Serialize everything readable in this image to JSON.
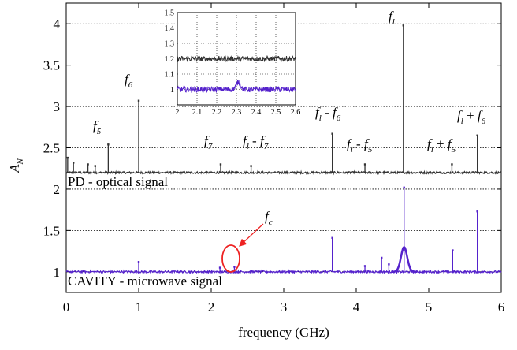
{
  "chart_data": [
    {
      "type": "line",
      "xlabel": "frequency (GHz)",
      "ylabel": "A_N",
      "ylabel_main": "A",
      "ylabel_sub": "N",
      "xlim": [
        0,
        6
      ],
      "ylim": [
        0.75,
        4.25
      ],
      "xticks": [
        "0",
        "1",
        "2",
        "3",
        "4",
        "5",
        "6"
      ],
      "yticks": [
        "1",
        "1.5",
        "2",
        "2.5",
        "3",
        "3.5",
        "4"
      ],
      "grid": "horizontal dotted",
      "series": [
        {
          "name": "PD - optical signal",
          "color": "#333333",
          "baseline": 2.2,
          "peaks": [
            {
              "x": 0.02,
              "y": 2.38
            },
            {
              "x": 0.1,
              "y": 2.32
            },
            {
              "x": 0.3,
              "y": 2.3
            },
            {
              "x": 0.4,
              "y": 2.28
            },
            {
              "x": 0.58,
              "y": 2.54
            },
            {
              "x": 1.0,
              "y": 3.07
            },
            {
              "x": 2.13,
              "y": 2.3
            },
            {
              "x": 2.55,
              "y": 2.28
            },
            {
              "x": 3.67,
              "y": 2.67
            },
            {
              "x": 4.12,
              "y": 2.3
            },
            {
              "x": 4.65,
              "y": 3.98
            },
            {
              "x": 5.32,
              "y": 2.3
            },
            {
              "x": 5.67,
              "y": 2.65
            }
          ]
        },
        {
          "name": "CAVITY - microwave signal",
          "color": "#5522cc",
          "baseline": 1.0,
          "peaks": [
            {
              "x": 1.0,
              "y": 1.12
            },
            {
              "x": 2.12,
              "y": 1.05
            },
            {
              "x": 2.32,
              "y": 1.06
            },
            {
              "x": 3.67,
              "y": 1.41
            },
            {
              "x": 4.12,
              "y": 1.07
            },
            {
              "x": 4.35,
              "y": 1.17
            },
            {
              "x": 4.45,
              "y": 1.09
            },
            {
              "x": 4.66,
              "y": 2.02
            },
            {
              "x": 5.33,
              "y": 1.26
            },
            {
              "x": 5.67,
              "y": 1.73
            }
          ]
        }
      ],
      "annotations": {
        "f5": {
          "main": "f",
          "sub": "5"
        },
        "f6": {
          "main": "f",
          "sub": "6"
        },
        "f7": {
          "main": "f",
          "sub": "7"
        },
        "fl_minus_f7": {
          "a": "f",
          "a_sub": "l",
          "op": " - ",
          "b": "f",
          "b_sub": "7"
        },
        "fl_minus_f6": {
          "a": "f",
          "a_sub": "l",
          "op": " - ",
          "b": "f",
          "b_sub": "6"
        },
        "fl_minus_f5": {
          "a": "f",
          "a_sub": "l",
          "op": " - ",
          "b": "f",
          "b_sub": "5"
        },
        "fl": {
          "main": "f",
          "sub": "l"
        },
        "fl_plus_f5": {
          "a": "f",
          "a_sub": "l",
          "op": " + ",
          "b": "f",
          "b_sub": "5"
        },
        "fl_plus_f6": {
          "a": "f",
          "a_sub": "l",
          "op": " + ",
          "b": "f",
          "b_sub": "6"
        },
        "fc": {
          "main": "f",
          "sub": "c"
        }
      },
      "labels": {
        "pd": "PD - optical signal",
        "cavity": "CAVITY - microwave signal"
      }
    },
    {
      "type": "line",
      "role": "inset",
      "xlim": [
        2,
        2.6
      ],
      "ylim": [
        0.9,
        1.5
      ],
      "xticks": [
        "2",
        "2.1",
        "2.2",
        "2.3",
        "2.4",
        "2.5",
        "2.6"
      ],
      "yticks": [
        "1",
        "1.1",
        "1.2",
        "1.3",
        "1.4",
        "1.5"
      ],
      "series": [
        {
          "name": "PD - optical signal",
          "color": "#333333",
          "baseline": 1.2
        },
        {
          "name": "CAVITY - microwave signal",
          "color": "#5522cc",
          "baseline": 1.0,
          "bump": {
            "x": 2.31,
            "y": 1.05
          }
        }
      ]
    }
  ]
}
